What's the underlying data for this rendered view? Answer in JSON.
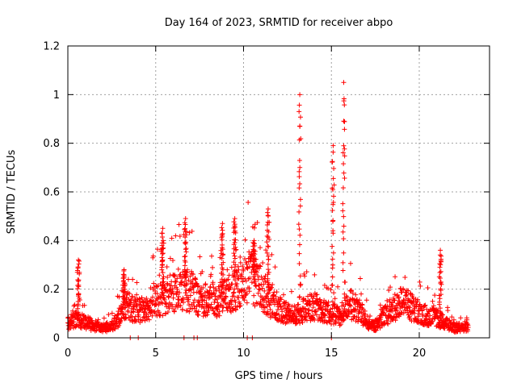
{
  "chart_data": {
    "type": "scatter",
    "title": "Day 164 of 2023, SRMTID for receiver abpo",
    "xlabel": "GPS time / hours",
    "ylabel": "SRMTID / TECUs",
    "xlim": [
      0,
      24
    ],
    "ylim": [
      0,
      1.2
    ],
    "x_ticks": [
      0,
      5,
      10,
      15,
      20
    ],
    "x_tick_labels": [
      "0",
      "5",
      "10",
      "15",
      "20"
    ],
    "y_ticks": [
      0,
      0.2,
      0.4,
      0.6,
      0.8,
      1.0,
      1.2
    ],
    "y_tick_labels": [
      "0",
      "0.2",
      "0.4",
      "0.6",
      "0.8",
      "1",
      "1.2"
    ],
    "grid": true,
    "marker": "+",
    "color": "#ff0000",
    "series": [
      {
        "name": "SRMTID",
        "x_range": [
          0,
          22.8
        ],
        "baseline_profile": [
          [
            0.0,
            0.06
          ],
          [
            0.5,
            0.08
          ],
          [
            1.0,
            0.06
          ],
          [
            1.5,
            0.05
          ],
          [
            2.0,
            0.04
          ],
          [
            2.5,
            0.05
          ],
          [
            3.0,
            0.09
          ],
          [
            3.3,
            0.14
          ],
          [
            3.6,
            0.12
          ],
          [
            4.0,
            0.11
          ],
          [
            4.5,
            0.12
          ],
          [
            5.0,
            0.15
          ],
          [
            5.5,
            0.17
          ],
          [
            6.0,
            0.19
          ],
          [
            6.5,
            0.2
          ],
          [
            7.0,
            0.19
          ],
          [
            7.5,
            0.16
          ],
          [
            8.0,
            0.16
          ],
          [
            8.5,
            0.15
          ],
          [
            9.0,
            0.17
          ],
          [
            9.5,
            0.2
          ],
          [
            10.0,
            0.22
          ],
          [
            10.5,
            0.25
          ],
          [
            11.0,
            0.2
          ],
          [
            11.5,
            0.15
          ],
          [
            12.0,
            0.12
          ],
          [
            12.5,
            0.1
          ],
          [
            13.0,
            0.09
          ],
          [
            13.5,
            0.12
          ],
          [
            14.0,
            0.13
          ],
          [
            14.5,
            0.11
          ],
          [
            15.0,
            0.1
          ],
          [
            15.5,
            0.09
          ],
          [
            16.0,
            0.14
          ],
          [
            16.5,
            0.12
          ],
          [
            17.0,
            0.07
          ],
          [
            17.5,
            0.05
          ],
          [
            18.0,
            0.09
          ],
          [
            18.5,
            0.12
          ],
          [
            19.0,
            0.15
          ],
          [
            19.5,
            0.13
          ],
          [
            20.0,
            0.1
          ],
          [
            20.5,
            0.09
          ],
          [
            21.0,
            0.08
          ],
          [
            21.5,
            0.06
          ],
          [
            22.0,
            0.04
          ],
          [
            22.8,
            0.05
          ]
        ],
        "spikes": [
          {
            "x": 0.6,
            "peak": 0.32
          },
          {
            "x": 3.2,
            "peak": 0.28
          },
          {
            "x": 5.4,
            "peak": 0.45
          },
          {
            "x": 6.7,
            "peak": 0.49
          },
          {
            "x": 8.8,
            "peak": 0.47
          },
          {
            "x": 9.5,
            "peak": 0.49
          },
          {
            "x": 10.6,
            "peak": 0.4
          },
          {
            "x": 11.4,
            "peak": 0.53
          },
          {
            "x": 13.2,
            "peak": 1.0
          },
          {
            "x": 15.1,
            "peak": 0.79
          },
          {
            "x": 15.7,
            "peak": 1.05
          },
          {
            "x": 21.2,
            "peak": 0.36
          }
        ]
      }
    ]
  }
}
